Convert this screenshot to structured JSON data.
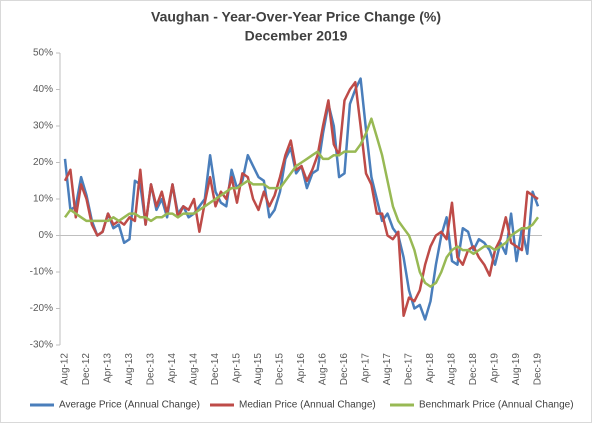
{
  "chart_data": {
    "type": "line",
    "title": "Vaughan - Year-Over-Year Price Change (%)",
    "subtitle": "December 2019",
    "categories": [
      "Aug-12",
      null,
      null,
      null,
      "Dec-12",
      null,
      null,
      null,
      "Apr-13",
      null,
      null,
      null,
      "Aug-13",
      null,
      null,
      null,
      "Dec-13",
      null,
      null,
      null,
      "Apr-14",
      null,
      null,
      null,
      "Aug-14",
      null,
      null,
      null,
      "Dec-14",
      null,
      null,
      null,
      "Apr-15",
      null,
      null,
      null,
      "Aug-15",
      null,
      null,
      null,
      "Dec-15",
      null,
      null,
      null,
      "Apr-16",
      null,
      null,
      null,
      "Aug-16",
      null,
      null,
      null,
      "Dec-16",
      null,
      null,
      null,
      "Apr-17",
      null,
      null,
      null,
      "Aug-17",
      null,
      null,
      null,
      "Dec-17",
      null,
      null,
      null,
      "Apr-18",
      null,
      null,
      null,
      "Aug-18",
      null,
      null,
      null,
      "Dec-18",
      null,
      null,
      null,
      "Apr-19",
      null,
      null,
      null,
      "Aug-19",
      null,
      null,
      null,
      "Dec-19"
    ],
    "series": [
      {
        "name": "Average Price (Annual Change)",
        "color": "#4a7ebb",
        "values": [
          21,
          7,
          8,
          16,
          11,
          4,
          0,
          1,
          6,
          2,
          3,
          -2,
          -1,
          15,
          14,
          3,
          14,
          7,
          10,
          5,
          14,
          6,
          8,
          5,
          6,
          8,
          10,
          22,
          12,
          9,
          8,
          18,
          13,
          15,
          22,
          19,
          16,
          15,
          5,
          7,
          12,
          21,
          24,
          17,
          19,
          13,
          17,
          18,
          28,
          36,
          30,
          16,
          17,
          36,
          40,
          43,
          29,
          16,
          10,
          4,
          6,
          2,
          0,
          -6,
          -15,
          -20,
          -19,
          -23,
          -18,
          -8,
          0,
          5,
          -7,
          -8,
          2,
          1,
          -4,
          -1,
          -2,
          -4,
          -8,
          -2,
          -5,
          6,
          -7,
          2,
          -5,
          12,
          8
        ]
      },
      {
        "name": "Median Price (Annual Change)",
        "color": "#be4b48",
        "values": [
          15,
          18,
          5,
          14,
          10,
          3,
          0,
          1,
          6,
          3,
          4,
          3,
          5,
          4,
          18,
          3,
          14,
          8,
          12,
          6,
          14,
          5,
          8,
          7,
          10,
          1,
          9,
          16,
          8,
          12,
          10,
          16,
          9,
          17,
          16,
          10,
          7,
          12,
          8,
          11,
          16,
          22,
          26,
          18,
          19,
          15,
          18,
          22,
          30,
          37,
          25,
          22,
          37,
          40,
          42,
          30,
          17,
          14,
          6,
          6,
          0,
          -1,
          1,
          -22,
          -17,
          -18,
          -15,
          -8,
          -3,
          0,
          1,
          -1,
          9,
          -6,
          -8,
          -4,
          -3,
          -6,
          -8,
          -11,
          -4,
          -1,
          5,
          -2,
          -3,
          -4,
          12,
          11,
          10
        ]
      },
      {
        "name": "Benchmark Price (Annual Change)",
        "color": "#98b954",
        "values": [
          5,
          7,
          6,
          5,
          4,
          4,
          4,
          4,
          4,
          5,
          4,
          5,
          6,
          6,
          5,
          5,
          4,
          5,
          5,
          6,
          6,
          5,
          6,
          6,
          6,
          7,
          8,
          9,
          10,
          11,
          12,
          13,
          13,
          14,
          15,
          14,
          14,
          14,
          13,
          13,
          13,
          15,
          17,
          19,
          20,
          21,
          22,
          23,
          21,
          21,
          22,
          22,
          23,
          23,
          23,
          25,
          28,
          32,
          27,
          22,
          15,
          8,
          4,
          2,
          0,
          -4,
          -10,
          -13,
          -14,
          -13,
          -10,
          -6,
          -4,
          -3,
          -4,
          -4,
          -5,
          -4,
          -3,
          -3,
          -4,
          -3,
          -2,
          0,
          1,
          2,
          2,
          3,
          5
        ]
      }
    ],
    "ylim": [
      -30,
      50
    ],
    "yticks": [
      {
        "value": -30,
        "label": "-30%"
      },
      {
        "value": -20,
        "label": "-20%"
      },
      {
        "value": -10,
        "label": "-10%"
      },
      {
        "value": 0,
        "label": "0%"
      },
      {
        "value": 10,
        "label": "10%"
      },
      {
        "value": 20,
        "label": "20%"
      },
      {
        "value": 30,
        "label": "30%"
      },
      {
        "value": 40,
        "label": "40%"
      },
      {
        "value": 50,
        "label": "50%"
      }
    ],
    "legend": "bottom"
  }
}
